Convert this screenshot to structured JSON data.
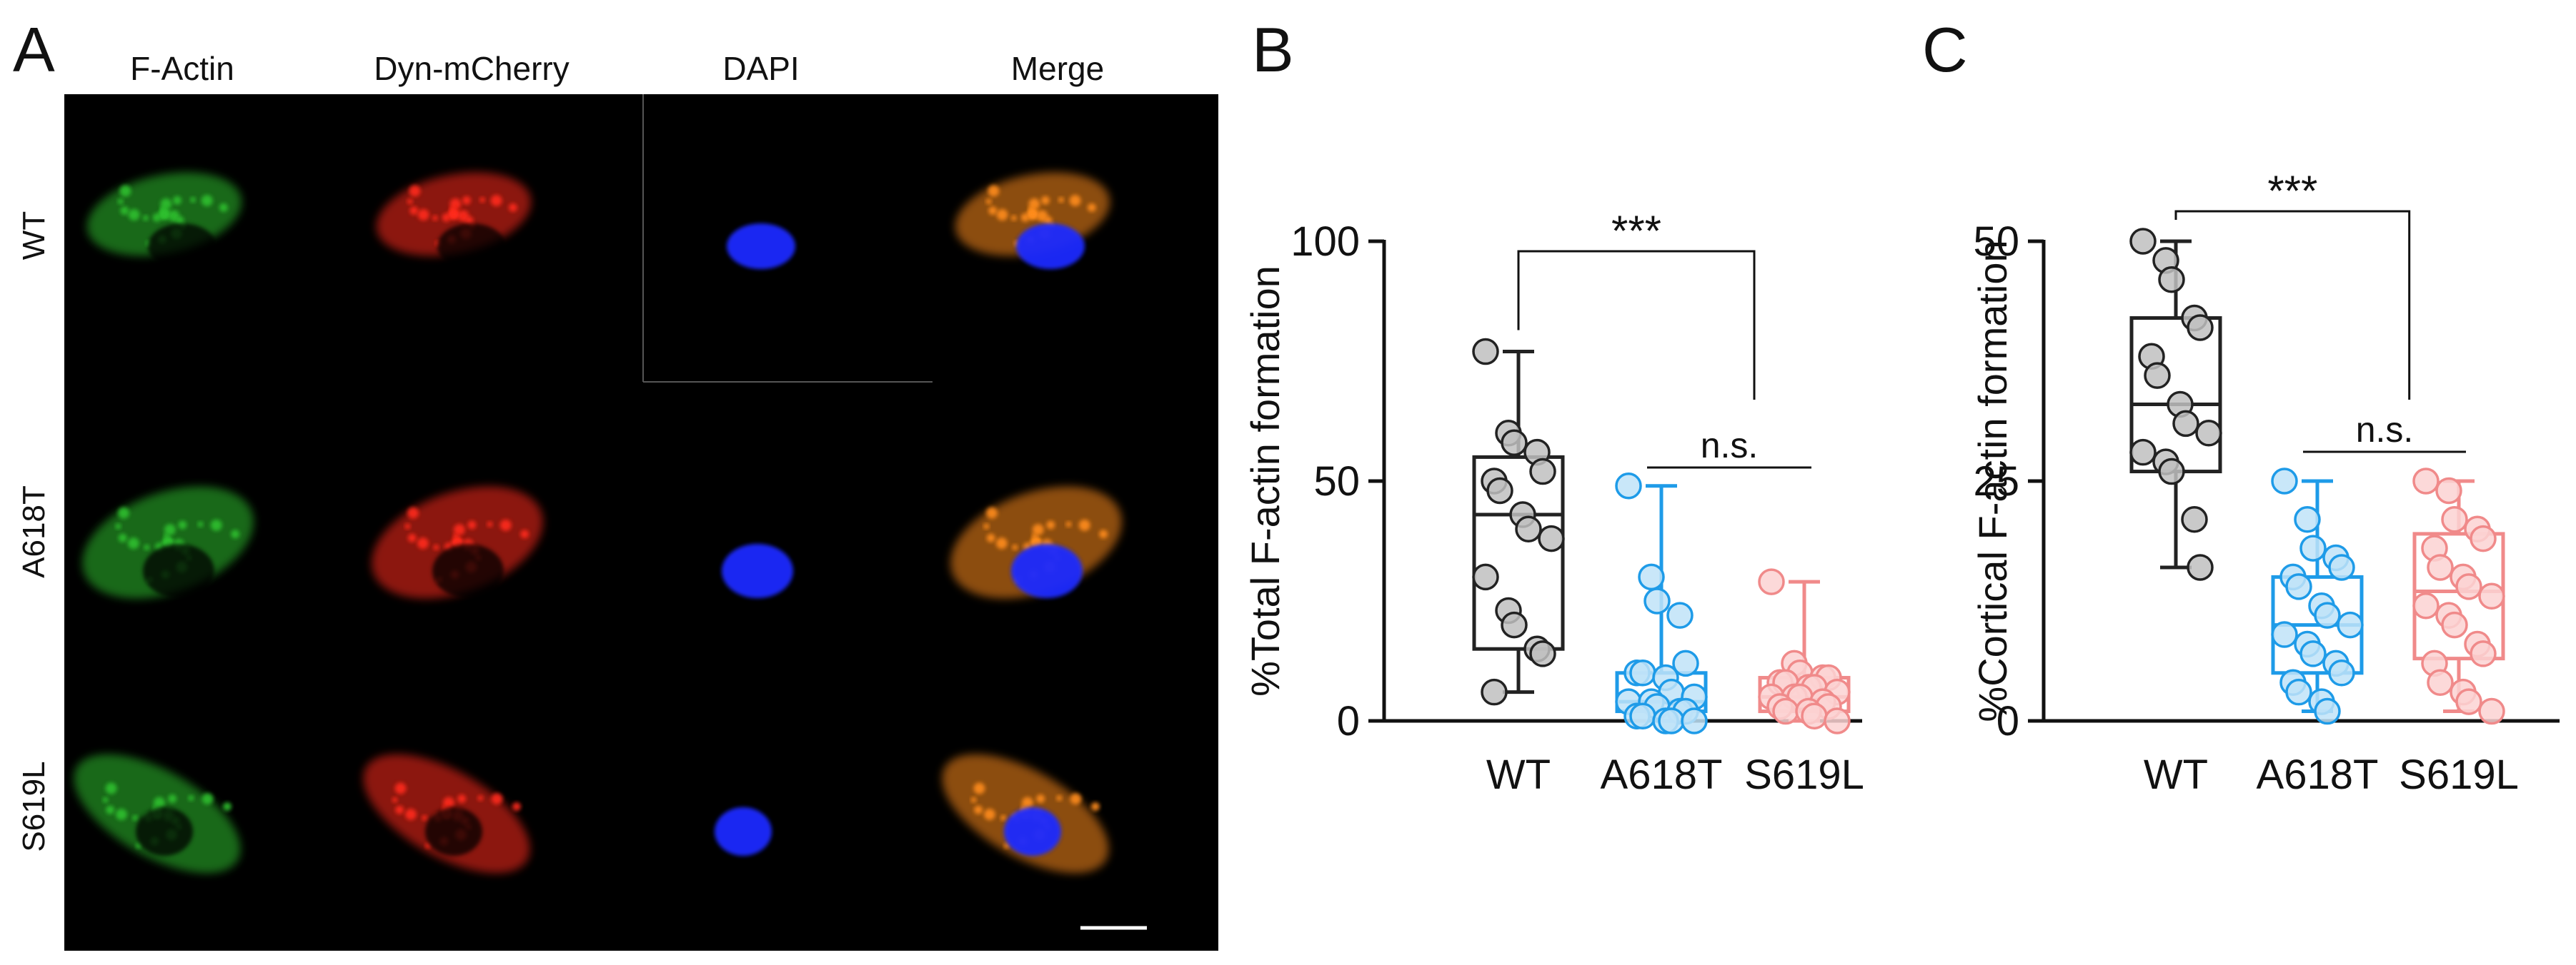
{
  "panel_a": {
    "letter": "A",
    "columns": [
      "F-Actin",
      "Dyn-mCherry",
      "DAPI",
      "Merge"
    ],
    "rows": [
      "WT",
      "A618T",
      "S619L"
    ],
    "channels": {
      "F-Actin": {
        "color": "#2fbf2f"
      },
      "Dyn-mCherry": {
        "color": "#ff2a1a"
      },
      "DAPI": {
        "color": "#1a2cff"
      },
      "Merge": {
        "color": "#ff8c1a"
      }
    },
    "scale_bar": true
  },
  "chart_data": [
    {
      "panel": "B",
      "type": "box",
      "ylabel": "%Total F-actin formation",
      "xlabel": "",
      "categories": [
        "WT",
        "A618T",
        "S619L"
      ],
      "ylim": [
        0,
        100
      ],
      "yticks": [
        0,
        50,
        100
      ],
      "colors": [
        "#222222",
        "#1e9be8",
        "#f08a8a"
      ],
      "point_fills": [
        "#c0c0c0",
        "#bfe3f8",
        "#fbd2d2"
      ],
      "boxes": [
        {
          "min": 6,
          "q1": 15,
          "median": 43,
          "q3": 55,
          "max": 77
        },
        {
          "min": 0,
          "q1": 2,
          "median": 4,
          "q3": 10,
          "max": 49
        },
        {
          "min": 0,
          "q1": 2,
          "median": 5,
          "q3": 9,
          "max": 29
        }
      ],
      "points": [
        [
          77,
          60,
          58,
          56,
          52,
          50,
          48,
          43,
          40,
          38,
          30,
          23,
          20,
          15,
          14,
          6
        ],
        [
          49,
          30,
          25,
          22,
          12,
          10,
          10,
          9,
          6,
          5,
          4,
          4,
          3,
          2,
          2,
          1,
          1,
          0,
          0,
          0
        ],
        [
          29,
          12,
          10,
          9,
          9,
          8,
          8,
          7,
          7,
          6,
          5,
          5,
          5,
          4,
          3,
          3,
          2,
          2,
          1,
          0
        ]
      ],
      "annotations": [
        {
          "text": "***",
          "from": 0,
          "to": 2
        },
        {
          "text": "n.s.",
          "from": 1,
          "to": 2
        }
      ]
    },
    {
      "panel": "C",
      "type": "box",
      "ylabel": "%Cortical F-actin formation",
      "xlabel": "",
      "categories": [
        "WT",
        "A618T",
        "S619L"
      ],
      "ylim": [
        0,
        50
      ],
      "yticks": [
        0,
        25,
        50
      ],
      "colors": [
        "#222222",
        "#1e9be8",
        "#f08a8a"
      ],
      "point_fills": [
        "#c0c0c0",
        "#bfe3f8",
        "#fbd2d2"
      ],
      "boxes": [
        {
          "min": 16,
          "q1": 26,
          "median": 33,
          "q3": 42,
          "max": 50
        },
        {
          "min": 1,
          "q1": 5,
          "median": 10,
          "q3": 15,
          "max": 25
        },
        {
          "min": 1,
          "q1": 6.5,
          "median": 13.5,
          "q3": 19.5,
          "max": 25
        }
      ],
      "points": [
        [
          50,
          48,
          46,
          42,
          41,
          38,
          36,
          33,
          31,
          30,
          28,
          27,
          26,
          21,
          16
        ],
        [
          25,
          21,
          18,
          17,
          16,
          15,
          14,
          12,
          11,
          10,
          9,
          8,
          7,
          6,
          5,
          4,
          3,
          2,
          1
        ],
        [
          25,
          24,
          21,
          20,
          19,
          18,
          16,
          15,
          14,
          13,
          12,
          11,
          10,
          8,
          7,
          6,
          4,
          3,
          2,
          1
        ]
      ],
      "annotations": [
        {
          "text": "***",
          "from": 0,
          "to": 2
        },
        {
          "text": "n.s.",
          "from": 1,
          "to": 2
        }
      ]
    }
  ]
}
